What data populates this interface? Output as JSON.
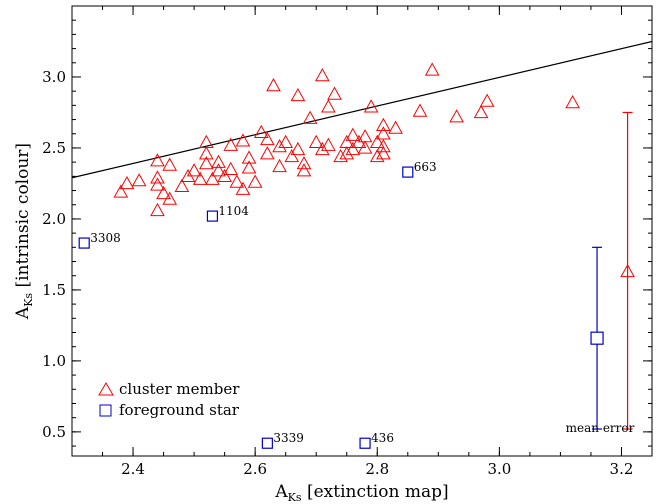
{
  "chart_data": {
    "type": "scatter",
    "xlim": [
      2.3,
      3.25
    ],
    "ylim": [
      0.33,
      3.5
    ],
    "x_ticks": [
      2.4,
      2.6,
      2.8,
      3.0,
      3.2
    ],
    "y_ticks": [
      0.5,
      1.0,
      1.5,
      2.0,
      2.5,
      3.0
    ],
    "x_tick_labels": [
      "2.4",
      "2.6",
      "2.8",
      "3.0",
      "3.2"
    ],
    "y_tick_labels": [
      "0.5",
      "1.0",
      "1.5",
      "2.0",
      "2.5",
      "3.0"
    ],
    "xlabel_main": "A",
    "xlabel_sub": "Ks",
    "xlabel_rest": " [extinction map]",
    "ylabel_main": "A",
    "ylabel_sub": "Ks",
    "ylabel_rest": " [intrinsic colour]",
    "grid": false,
    "legend_position": "bottom-left",
    "line": {
      "x": [
        2.3,
        3.25
      ],
      "y": [
        2.29,
        3.25
      ],
      "color": "#000000"
    },
    "series": [
      {
        "name": "cluster member",
        "marker": "triangle",
        "color": "#ff0000",
        "points": [
          {
            "x": 2.38,
            "y": 2.19
          },
          {
            "x": 2.39,
            "y": 2.25
          },
          {
            "x": 2.41,
            "y": 2.27
          },
          {
            "x": 2.44,
            "y": 2.06
          },
          {
            "x": 2.44,
            "y": 2.24
          },
          {
            "x": 2.44,
            "y": 2.29
          },
          {
            "x": 2.44,
            "y": 2.41
          },
          {
            "x": 2.45,
            "y": 2.18
          },
          {
            "x": 2.46,
            "y": 2.14
          },
          {
            "x": 2.46,
            "y": 2.38
          },
          {
            "x": 2.48,
            "y": 2.23
          },
          {
            "x": 2.49,
            "y": 2.3
          },
          {
            "x": 2.5,
            "y": 2.34
          },
          {
            "x": 2.51,
            "y": 2.28
          },
          {
            "x": 2.52,
            "y": 2.39
          },
          {
            "x": 2.52,
            "y": 2.46
          },
          {
            "x": 2.52,
            "y": 2.54
          },
          {
            "x": 2.53,
            "y": 2.28
          },
          {
            "x": 2.54,
            "y": 2.34
          },
          {
            "x": 2.54,
            "y": 2.4
          },
          {
            "x": 2.55,
            "y": 2.3
          },
          {
            "x": 2.56,
            "y": 2.35
          },
          {
            "x": 2.56,
            "y": 2.52
          },
          {
            "x": 2.57,
            "y": 2.26
          },
          {
            "x": 2.58,
            "y": 2.55
          },
          {
            "x": 2.58,
            "y": 2.21
          },
          {
            "x": 2.59,
            "y": 2.36
          },
          {
            "x": 2.59,
            "y": 2.43
          },
          {
            "x": 2.6,
            "y": 2.26
          },
          {
            "x": 2.61,
            "y": 2.61
          },
          {
            "x": 2.62,
            "y": 2.46
          },
          {
            "x": 2.62,
            "y": 2.56
          },
          {
            "x": 2.63,
            "y": 2.94
          },
          {
            "x": 2.64,
            "y": 2.37
          },
          {
            "x": 2.64,
            "y": 2.51
          },
          {
            "x": 2.65,
            "y": 2.54
          },
          {
            "x": 2.66,
            "y": 2.44
          },
          {
            "x": 2.67,
            "y": 2.49
          },
          {
            "x": 2.67,
            "y": 2.87
          },
          {
            "x": 2.68,
            "y": 2.34
          },
          {
            "x": 2.68,
            "y": 2.39
          },
          {
            "x": 2.69,
            "y": 2.71
          },
          {
            "x": 2.7,
            "y": 2.54
          },
          {
            "x": 2.71,
            "y": 3.01
          },
          {
            "x": 2.71,
            "y": 2.49
          },
          {
            "x": 2.72,
            "y": 2.79
          },
          {
            "x": 2.72,
            "y": 2.52
          },
          {
            "x": 2.73,
            "y": 2.88
          },
          {
            "x": 2.74,
            "y": 2.44
          },
          {
            "x": 2.75,
            "y": 2.54
          },
          {
            "x": 2.75,
            "y": 2.46
          },
          {
            "x": 2.76,
            "y": 2.49
          },
          {
            "x": 2.76,
            "y": 2.59
          },
          {
            "x": 2.77,
            "y": 2.54
          },
          {
            "x": 2.78,
            "y": 2.58
          },
          {
            "x": 2.78,
            "y": 2.5
          },
          {
            "x": 2.79,
            "y": 2.79
          },
          {
            "x": 2.8,
            "y": 2.44
          },
          {
            "x": 2.8,
            "y": 2.54
          },
          {
            "x": 2.81,
            "y": 2.46
          },
          {
            "x": 2.81,
            "y": 2.51
          },
          {
            "x": 2.81,
            "y": 2.66
          },
          {
            "x": 2.81,
            "y": 2.6
          },
          {
            "x": 2.83,
            "y": 2.64
          },
          {
            "x": 2.87,
            "y": 2.76
          },
          {
            "x": 2.89,
            "y": 3.05
          },
          {
            "x": 2.93,
            "y": 2.72
          },
          {
            "x": 2.97,
            "y": 2.75
          },
          {
            "x": 2.98,
            "y": 2.83
          },
          {
            "x": 3.12,
            "y": 2.82
          }
        ]
      },
      {
        "name": "foreground star",
        "marker": "square",
        "color": "#0000cc",
        "points": [
          {
            "x": 2.32,
            "y": 1.83,
            "label": "3308"
          },
          {
            "x": 2.53,
            "y": 2.02,
            "label": "1104"
          },
          {
            "x": 2.85,
            "y": 2.33,
            "label": "663"
          },
          {
            "x": 2.62,
            "y": 0.42,
            "label": "3339"
          },
          {
            "x": 2.78,
            "y": 0.42,
            "label": "436"
          }
        ]
      }
    ],
    "mean_error": {
      "label": "mean error",
      "bars": [
        {
          "series": "foreground star",
          "x": 3.16,
          "y": 1.16,
          "low": 0.52,
          "high": 1.8,
          "color": "#0000cc",
          "marker": "square"
        },
        {
          "series": "cluster member",
          "x": 3.21,
          "y": 1.63,
          "low": 0.52,
          "high": 2.75,
          "color": "#ff0000",
          "marker": "triangle"
        }
      ]
    }
  }
}
